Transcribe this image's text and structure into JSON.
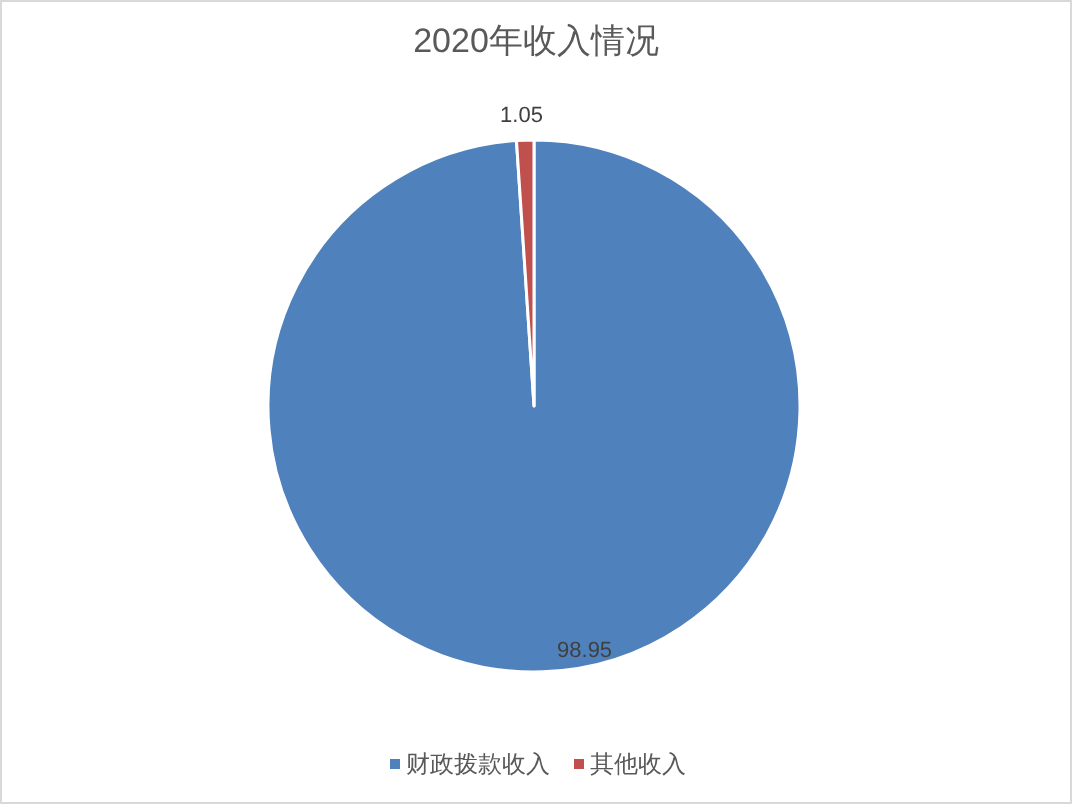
{
  "chart_data": {
    "type": "pie",
    "title": "2020年收入情况",
    "categories": [
      "财政拨款收入",
      "其他收入"
    ],
    "values": [
      98.95,
      1.05
    ],
    "colors": [
      "#4f81bd",
      "#c0504d"
    ],
    "data_labels": true,
    "legend": "bottom"
  }
}
